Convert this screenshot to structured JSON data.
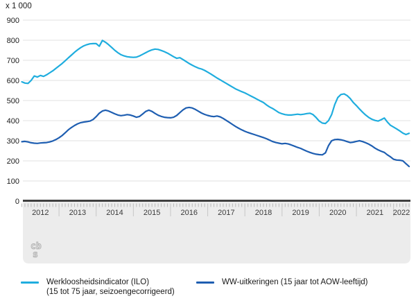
{
  "chart": {
    "unit_label": "x 1 000",
    "y_ticks": [
      0,
      100,
      200,
      300,
      400,
      500,
      600,
      700,
      800,
      900
    ],
    "x_year_labels": [
      "2012",
      "2013",
      "2014",
      "2015",
      "2016",
      "2017",
      "2018",
      "2019",
      "2020",
      "2021",
      "2022"
    ],
    "colors": {
      "ilo_line": "#1fadde",
      "ww_line": "#1e5eb1",
      "gridline": "#e0e0e0",
      "zero_axis": "#3f3f3f",
      "band_fill": "#ececec",
      "month_tick": "#b9b9b9",
      "year_divider": "#c6c6c6",
      "year_label_text": "#3a3a3a",
      "axis_label_text": "#1a1a1a",
      "logo_gray": "#b2b2b2"
    }
  },
  "chart_data": {
    "type": "line",
    "unit": "x 1 000",
    "x_start": "2012-01",
    "x_end": "2022-06",
    "x_interval": "month",
    "ylim": [
      0,
      900
    ],
    "grid": true,
    "legend_position": "bottom",
    "series": [
      {
        "name": "Werkloosheidsindicator (ILO) (15 tot 75 jaar, seizoengecorrigeerd)",
        "color": "#1fadde",
        "values": [
          593,
          587,
          585,
          600,
          622,
          617,
          625,
          620,
          628,
          638,
          648,
          660,
          672,
          684,
          698,
          712,
          726,
          740,
          752,
          763,
          772,
          778,
          782,
          783,
          783,
          770,
          799,
          790,
          778,
          764,
          750,
          738,
          728,
          722,
          718,
          716,
          715,
          716,
          722,
          730,
          738,
          746,
          752,
          756,
          754,
          749,
          743,
          736,
          727,
          718,
          710,
          713,
          704,
          694,
          684,
          676,
          668,
          661,
          657,
          650,
          641,
          632,
          622,
          612,
          603,
          594,
          585,
          576,
          567,
          558,
          551,
          544,
          538,
          530,
          522,
          514,
          506,
          498,
          490,
          478,
          468,
          460,
          450,
          440,
          434,
          430,
          428,
          428,
          430,
          432,
          430,
          432,
          435,
          437,
          430,
          415,
          398,
          388,
          386,
          400,
          430,
          480,
          515,
          530,
          533,
          525,
          510,
          490,
          475,
          458,
          442,
          428,
          416,
          407,
          401,
          398,
          405,
          413,
          393,
          377,
          368,
          359,
          349,
          338,
          331,
          337
        ]
      },
      {
        "name": "WW-uitkeringen (15 jaar tot AOW-leeftijd)",
        "color": "#1e5eb1",
        "values": [
          295,
          297,
          294,
          290,
          288,
          287,
          289,
          290,
          291,
          294,
          299,
          306,
          315,
          326,
          340,
          354,
          366,
          376,
          384,
          390,
          393,
          395,
          398,
          406,
          420,
          437,
          448,
          452,
          448,
          441,
          434,
          428,
          425,
          427,
          430,
          428,
          423,
          417,
          421,
          433,
          446,
          452,
          446,
          436,
          427,
          421,
          417,
          415,
          414,
          417,
          426,
          440,
          453,
          463,
          466,
          463,
          456,
          447,
          438,
          431,
          426,
          422,
          420,
          423,
          419,
          411,
          401,
          391,
          381,
          371,
          362,
          354,
          347,
          341,
          336,
          331,
          326,
          321,
          316,
          310,
          303,
          296,
          291,
          288,
          285,
          287,
          284,
          279,
          273,
          267,
          262,
          255,
          248,
          242,
          237,
          233,
          231,
          230,
          240,
          276,
          300,
          306,
          307,
          305,
          301,
          296,
          291,
          293,
          297,
          300,
          296,
          290,
          283,
          274,
          263,
          255,
          248,
          242,
          230,
          220,
          208,
          204,
          203,
          200,
          186,
          172
        ]
      }
    ]
  },
  "legend": {
    "items": [
      {
        "line1": "Werkloosheidsindicator (ILO)",
        "line2": "(15 tot 75 jaar, seizoengecorrigeerd)"
      },
      {
        "line1": "WW-uitkeringen (15 jaar tot AOW-leeftijd)",
        "line2": ""
      }
    ]
  },
  "branding": {
    "logo_name": "cbs-logo"
  }
}
